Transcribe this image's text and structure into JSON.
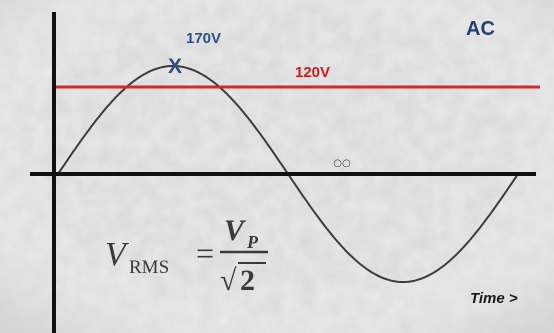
{
  "diagram": {
    "corner_label": "AC",
    "peak_label": "170V",
    "peak_marker": "X",
    "rms_label": "120V",
    "time_label": "Time >",
    "zero_marker": "○○",
    "formula": {
      "lhs_symbol": "V",
      "lhs_subscript": "RMS",
      "equals": "=",
      "numerator_symbol": "V",
      "numerator_subscript": "P",
      "radical_sign": "√",
      "denominator_value": "2"
    },
    "colors": {
      "background": "#e9e9e9",
      "waveform": "#3c3c3c",
      "axes": "#111111",
      "rms_line": "#d22a2a",
      "peak_label": "#2f4f86",
      "rms_label": "#c81e1e",
      "corner_label": "#243f73"
    }
  }
}
